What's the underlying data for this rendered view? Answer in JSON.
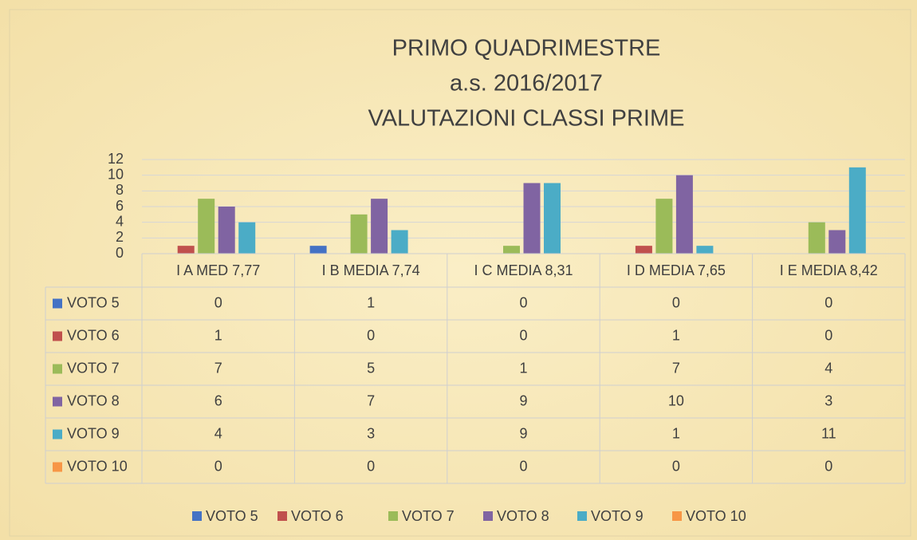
{
  "chart_data": {
    "type": "bar",
    "title": [
      "PRIMO QUADRIMESTRE",
      "a.s. 2016/2017",
      "VALUTAZIONI CLASSI PRIME"
    ],
    "categories": [
      "I A MED 7,77",
      "I B MEDIA 7,74",
      "I C MEDIA 8,31",
      "I D MEDIA 7,65",
      "I E MEDIA 8,42"
    ],
    "series": [
      {
        "name": "VOTO 5",
        "color": "#4472c4",
        "values": [
          0,
          1,
          0,
          0,
          0
        ]
      },
      {
        "name": "VOTO 6",
        "color": "#c0504d",
        "values": [
          1,
          0,
          0,
          1,
          0
        ]
      },
      {
        "name": "VOTO 7",
        "color": "#9bbb59",
        "values": [
          7,
          5,
          1,
          7,
          4
        ]
      },
      {
        "name": "VOTO 8",
        "color": "#8064a2",
        "values": [
          6,
          7,
          9,
          10,
          3
        ]
      },
      {
        "name": "VOTO 9",
        "color": "#4bacc6",
        "values": [
          4,
          3,
          9,
          1,
          11
        ]
      },
      {
        "name": "VOTO 10",
        "color": "#f79646",
        "values": [
          0,
          0,
          0,
          0,
          0
        ]
      }
    ],
    "ylim": [
      0,
      12
    ],
    "yticks": [
      0,
      2,
      4,
      6,
      8,
      10,
      12
    ],
    "grid": true,
    "legend": "bottom",
    "data_table": true
  }
}
